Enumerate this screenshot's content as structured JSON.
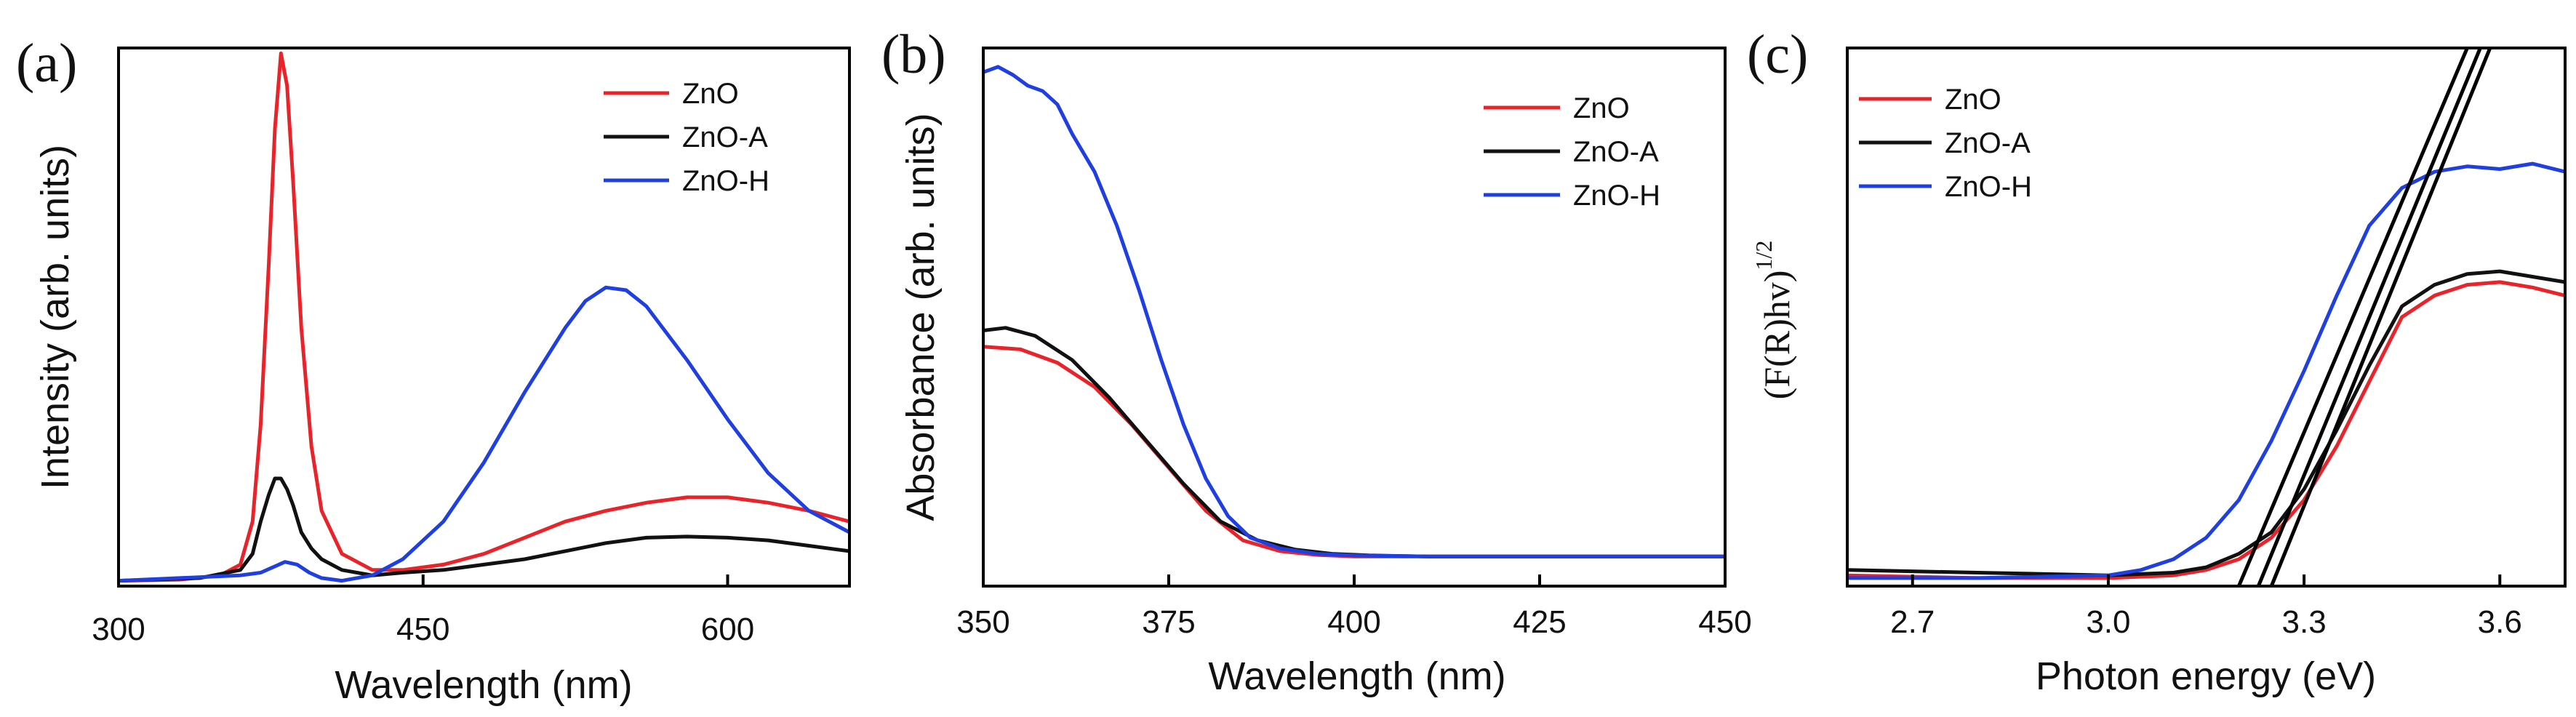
{
  "colors": {
    "ZnO": "#e8242a",
    "ZnO-A": "#111111",
    "ZnO-H": "#1f3fe0",
    "axis": "#000000"
  },
  "chart_data": [
    {
      "type": "line",
      "panel": "(a)",
      "xlabel": "Wavelength (nm)",
      "ylabel": "Intensity (arb. units)",
      "xlim": [
        300,
        660
      ],
      "ylim": [
        0,
        1.0
      ],
      "xticks": [
        300,
        450,
        600
      ],
      "xtick_labels": [
        "300",
        "450",
        "600"
      ],
      "legend": [
        "ZnO",
        "ZnO-A",
        "ZnO-H"
      ],
      "legend_position": "top-right",
      "series": [
        {
          "name": "ZnO",
          "x": [
            300,
            330,
            350,
            360,
            366,
            370,
            374,
            377,
            380,
            383,
            386,
            390,
            395,
            400,
            410,
            425,
            440,
            460,
            480,
            500,
            520,
            540,
            560,
            580,
            600,
            620,
            640,
            660
          ],
          "y": [
            0.01,
            0.012,
            0.02,
            0.04,
            0.12,
            0.3,
            0.6,
            0.85,
            0.99,
            0.93,
            0.75,
            0.48,
            0.26,
            0.14,
            0.06,
            0.03,
            0.03,
            0.04,
            0.06,
            0.09,
            0.12,
            0.14,
            0.155,
            0.165,
            0.165,
            0.155,
            0.14,
            0.12
          ]
        },
        {
          "name": "ZnO-A",
          "x": [
            300,
            340,
            360,
            366,
            370,
            374,
            377,
            380,
            383,
            386,
            390,
            395,
            400,
            410,
            425,
            440,
            460,
            480,
            500,
            520,
            540,
            560,
            580,
            600,
            620,
            640,
            660
          ],
          "y": [
            0.01,
            0.015,
            0.03,
            0.06,
            0.12,
            0.17,
            0.2,
            0.2,
            0.18,
            0.15,
            0.1,
            0.07,
            0.05,
            0.03,
            0.02,
            0.025,
            0.03,
            0.04,
            0.05,
            0.065,
            0.08,
            0.09,
            0.092,
            0.09,
            0.085,
            0.075,
            0.065
          ]
        },
        {
          "name": "ZnO-H",
          "x": [
            300,
            360,
            370,
            376,
            382,
            388,
            394,
            400,
            410,
            425,
            440,
            460,
            480,
            500,
            520,
            530,
            540,
            550,
            560,
            580,
            600,
            620,
            640,
            660
          ],
          "y": [
            0.01,
            0.02,
            0.025,
            0.035,
            0.045,
            0.04,
            0.025,
            0.015,
            0.01,
            0.02,
            0.05,
            0.12,
            0.23,
            0.36,
            0.48,
            0.53,
            0.555,
            0.55,
            0.52,
            0.42,
            0.31,
            0.21,
            0.14,
            0.1
          ]
        }
      ]
    },
    {
      "type": "line",
      "panel": "(b)",
      "xlabel": "Wavelength (nm)",
      "ylabel": "Absorbance (arb. units)",
      "xlim": [
        350,
        450
      ],
      "ylim": [
        0,
        1.0
      ],
      "xticks": [
        350,
        375,
        400,
        425,
        450
      ],
      "xtick_labels": [
        "350",
        "375",
        "400",
        "425",
        "450"
      ],
      "legend": [
        "ZnO",
        "ZnO-A",
        "ZnO-H"
      ],
      "legend_position": "top-right",
      "series": [
        {
          "name": "ZnO",
          "x": [
            350,
            355,
            360,
            365,
            370,
            375,
            380,
            385,
            390,
            395,
            400,
            410,
            425,
            450
          ],
          "y": [
            0.445,
            0.44,
            0.415,
            0.37,
            0.3,
            0.22,
            0.14,
            0.085,
            0.065,
            0.058,
            0.055,
            0.055,
            0.055,
            0.055
          ]
        },
        {
          "name": "ZnO-A",
          "x": [
            350,
            353,
            357,
            362,
            367,
            372,
            377,
            382,
            387,
            392,
            397,
            402,
            410,
            425,
            450
          ],
          "y": [
            0.475,
            0.48,
            0.465,
            0.42,
            0.35,
            0.27,
            0.19,
            0.12,
            0.085,
            0.068,
            0.06,
            0.057,
            0.055,
            0.055,
            0.055
          ]
        },
        {
          "name": "ZnO-H",
          "x": [
            350,
            352,
            354,
            356,
            358,
            360,
            362,
            365,
            368,
            371,
            374,
            377,
            380,
            383,
            386,
            390,
            395,
            400,
            410,
            425,
            450
          ],
          "y": [
            0.955,
            0.965,
            0.95,
            0.93,
            0.92,
            0.895,
            0.84,
            0.77,
            0.67,
            0.55,
            0.42,
            0.3,
            0.2,
            0.13,
            0.09,
            0.07,
            0.06,
            0.057,
            0.055,
            0.055,
            0.055
          ]
        }
      ]
    },
    {
      "type": "line",
      "panel": "(c)",
      "xlabel": "Photon energy (eV)",
      "ylabel": "(F(R)hv)",
      "ylabel_superscript": "1/2",
      "xlim": [
        2.6,
        3.7
      ],
      "ylim": [
        0,
        1.0
      ],
      "xticks": [
        2.7,
        3.0,
        3.3,
        3.6
      ],
      "xtick_labels": [
        "2.7",
        "3.0",
        "3.3",
        "3.6"
      ],
      "legend": [
        "ZnO",
        "ZnO-A",
        "ZnO-H"
      ],
      "legend_position": "top-left",
      "series": [
        {
          "name": "ZnO",
          "x": [
            2.6,
            2.8,
            3.0,
            3.1,
            3.15,
            3.2,
            3.25,
            3.3,
            3.35,
            3.4,
            3.45,
            3.5,
            3.55,
            3.6,
            3.65,
            3.7
          ],
          "y": [
            0.02,
            0.015,
            0.015,
            0.02,
            0.03,
            0.05,
            0.09,
            0.16,
            0.26,
            0.38,
            0.5,
            0.54,
            0.56,
            0.565,
            0.555,
            0.54
          ]
        },
        {
          "name": "ZnO-A",
          "x": [
            2.6,
            2.8,
            3.0,
            3.1,
            3.15,
            3.2,
            3.25,
            3.3,
            3.35,
            3.4,
            3.45,
            3.5,
            3.55,
            3.6,
            3.65,
            3.7
          ],
          "y": [
            0.03,
            0.025,
            0.02,
            0.025,
            0.035,
            0.06,
            0.1,
            0.18,
            0.29,
            0.41,
            0.52,
            0.56,
            0.58,
            0.585,
            0.575,
            0.565
          ]
        },
        {
          "name": "ZnO-H",
          "x": [
            2.6,
            2.8,
            3.0,
            3.05,
            3.1,
            3.15,
            3.2,
            3.25,
            3.3,
            3.35,
            3.4,
            3.45,
            3.5,
            3.55,
            3.6,
            3.65,
            3.7
          ],
          "y": [
            0.015,
            0.015,
            0.02,
            0.03,
            0.05,
            0.09,
            0.16,
            0.27,
            0.4,
            0.54,
            0.67,
            0.74,
            0.77,
            0.78,
            0.775,
            0.785,
            0.77
          ]
        }
      ],
      "tangent_lines": [
        {
          "name": "tangent-1",
          "x": [
            3.2,
            3.55
          ],
          "y": [
            0.0,
            1.0
          ]
        },
        {
          "name": "tangent-2",
          "x": [
            3.23,
            3.57
          ],
          "y": [
            0.0,
            1.0
          ]
        },
        {
          "name": "tangent-3",
          "x": [
            3.25,
            3.585
          ],
          "y": [
            0.0,
            1.0
          ]
        }
      ]
    }
  ]
}
